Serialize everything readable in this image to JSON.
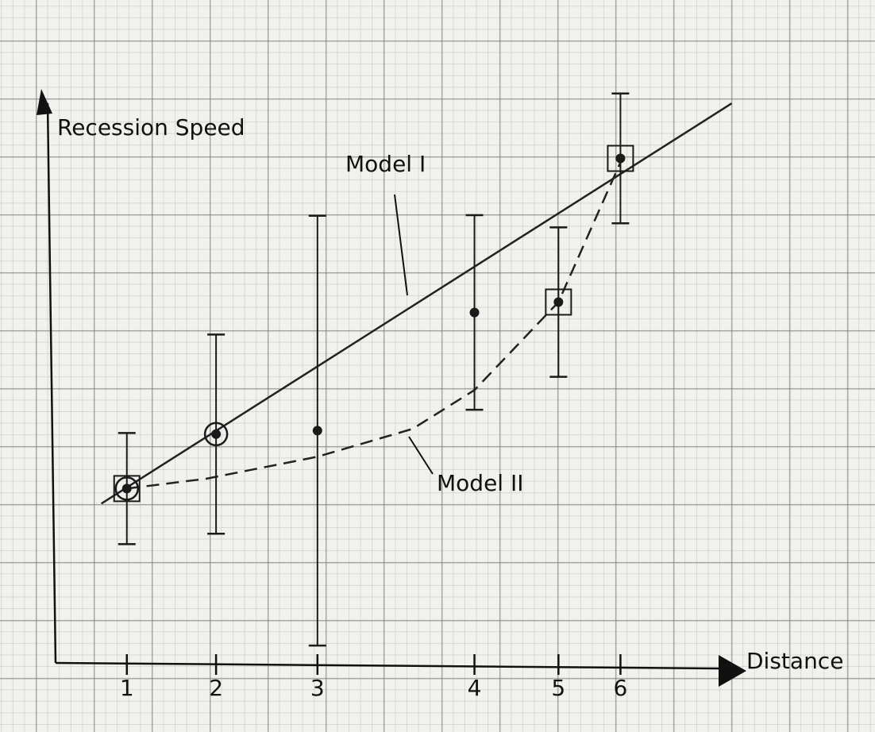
{
  "chart_data": {
    "type": "scatter",
    "y_label": "Recession Speed",
    "x_label": "Distance",
    "xlim": [
      0,
      11.8
    ],
    "ylim": [
      0,
      9.8
    ],
    "xticks": [
      {
        "value": 1.23,
        "label": "1"
      },
      {
        "value": 2.77,
        "label": "2"
      },
      {
        "value": 4.52,
        "label": "3"
      },
      {
        "value": 7.23,
        "label": "4"
      },
      {
        "value": 8.68,
        "label": "5"
      },
      {
        "value": 9.75,
        "label": "6"
      }
    ],
    "points": {
      "x": [
        1.23,
        2.77,
        4.52,
        7.23,
        8.68,
        9.75
      ],
      "values": [
        3.01,
        3.95,
        4.01,
        6.05,
        6.23,
        8.71
      ],
      "errors": [
        0.96,
        1.72,
        3.71,
        1.68,
        1.29,
        1.12
      ],
      "markers": [
        "circle+square",
        "circle",
        "dot",
        "dot",
        "square",
        "square"
      ],
      "color": "#1a1a1a"
    },
    "series": [
      {
        "name": "Model I",
        "style": "solid",
        "color": "#222222",
        "x": [
          0.79,
          11.67
        ],
        "values": [
          2.75,
          9.66
        ]
      },
      {
        "name": "Model II",
        "style": "dashed",
        "color": "#222222",
        "x": [
          1.23,
          2.6,
          4.52,
          6.16,
          7.23,
          8.68,
          9.78
        ],
        "values": [
          3.01,
          3.18,
          3.56,
          4.04,
          4.71,
          6.23,
          8.71
        ]
      }
    ]
  }
}
